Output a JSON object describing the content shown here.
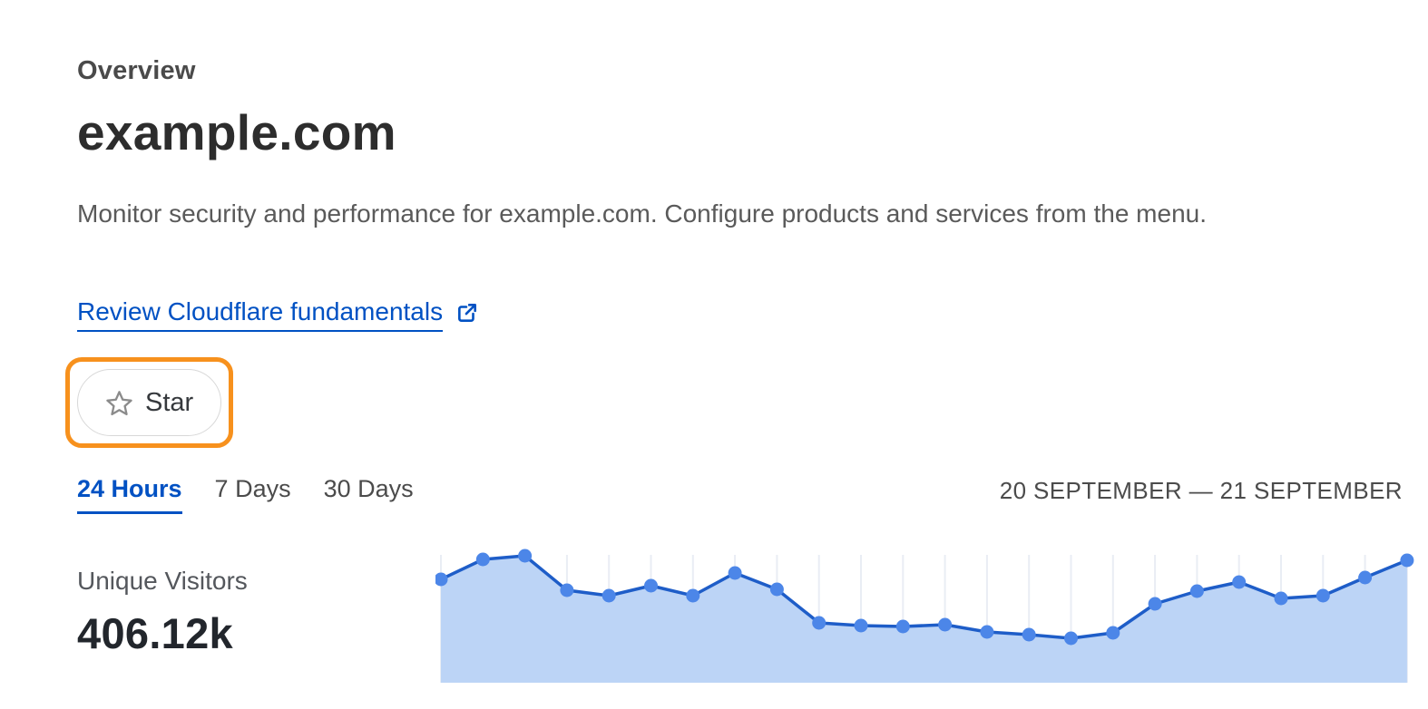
{
  "header": {
    "eyebrow": "Overview",
    "title": "example.com",
    "description": "Monitor security and performance for example.com. Configure products and services from the menu.",
    "link_label": "Review Cloudflare fundamentals",
    "star_button_label": "Star"
  },
  "time_tabs": [
    {
      "label": "24 Hours",
      "active": true
    },
    {
      "label": "7 Days",
      "active": false
    },
    {
      "label": "30 Days",
      "active": false
    }
  ],
  "date_range": "20 SEPTEMBER — 21 SEPTEMBER",
  "metric": {
    "label": "Unique Visitors",
    "value": "406.12k"
  },
  "colors": {
    "link_blue": "#0051c3",
    "active_tab_blue": "#0051c3",
    "highlight_orange": "#f7911d",
    "heading_dark": "#2d2d2d",
    "text_gray": "#5a5a5a"
  },
  "chart_data": {
    "type": "area",
    "title": "Unique Visitors over 24 hours",
    "series_name": "Unique Visitors",
    "x_description": "24 hourly points spanning 20 September — 21 September (no x tick labels shown)",
    "y_description": "relative visitor volume per hour (no y-axis labels shown); units are pixel heights above baseline",
    "x": [
      0,
      1,
      2,
      3,
      4,
      5,
      6,
      7,
      8,
      9,
      10,
      11,
      12,
      13,
      14,
      15,
      16,
      17,
      18,
      19,
      20,
      21,
      22,
      23
    ],
    "values": [
      114,
      136,
      140,
      102,
      96,
      107,
      96,
      121,
      103,
      66,
      63,
      62,
      64,
      56,
      53,
      49,
      55,
      87,
      101,
      111,
      93,
      96,
      116,
      135
    ],
    "total_label": "406.12k",
    "grid": "vertical gridline at every hourly point",
    "legend": "none",
    "colors": {
      "line": "#1e5dc8",
      "dot": "#4c86e8",
      "fill": "#bcd4f6",
      "grid_line": "#e9edf4"
    }
  }
}
